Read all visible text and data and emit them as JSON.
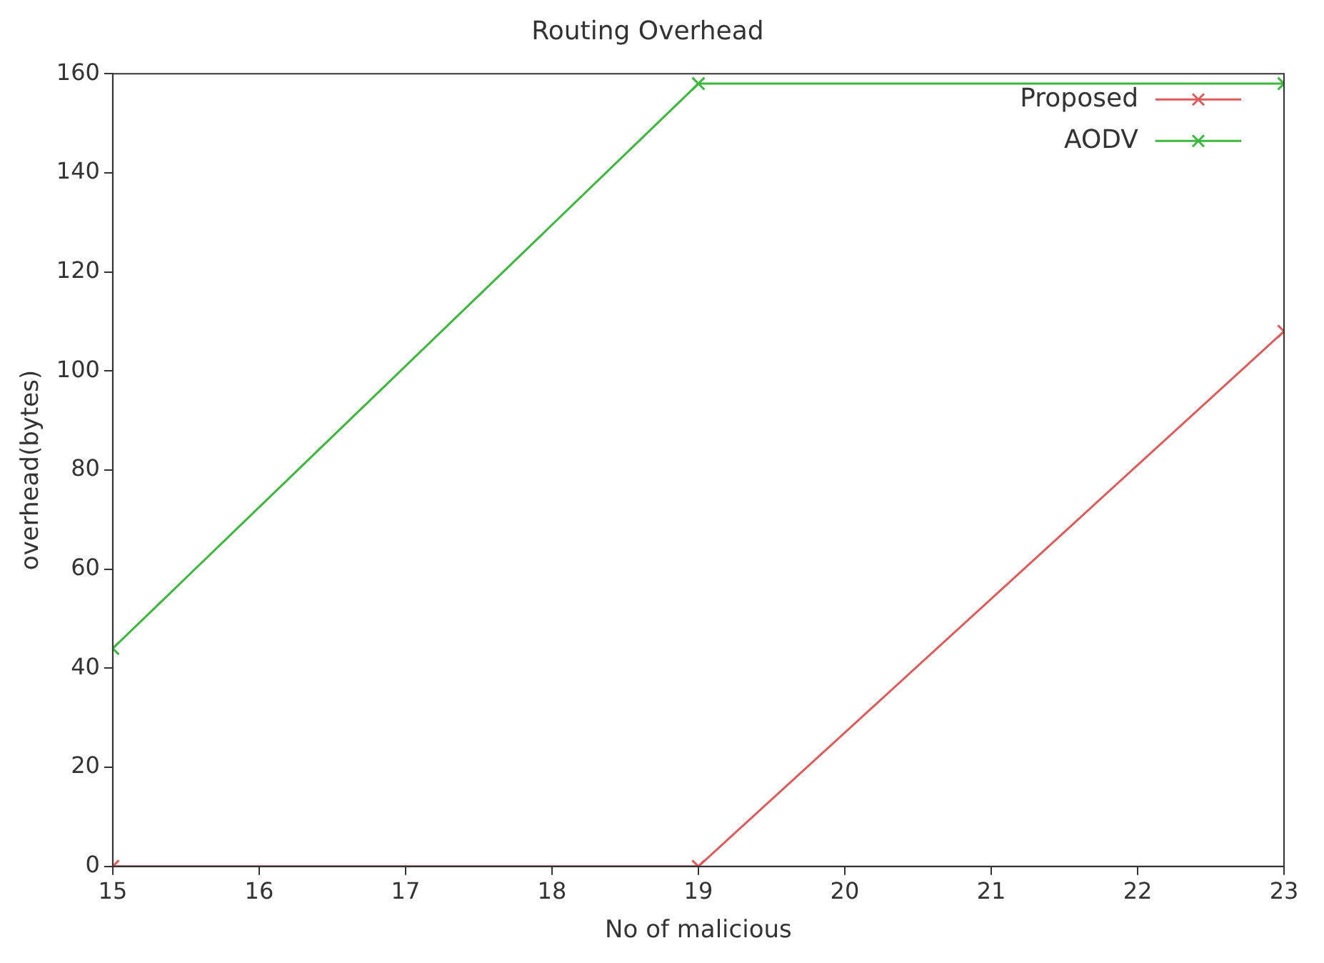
{
  "chart_data": {
    "type": "line",
    "title": "Routing Overhead",
    "xlabel": "No of malicious",
    "ylabel": "overhead(bytes)",
    "x": [
      15,
      19,
      23
    ],
    "series": [
      {
        "name": "Proposed",
        "color": "#e05a5a",
        "values": [
          0,
          0,
          108
        ]
      },
      {
        "name": "AODV",
        "color": "#3cb83c",
        "values": [
          44,
          158,
          158
        ]
      }
    ],
    "xlim": [
      15,
      23
    ],
    "xticks": [
      15,
      16,
      17,
      18,
      19,
      20,
      21,
      22,
      23
    ],
    "ylim": [
      0,
      160
    ],
    "yticks": [
      0,
      20,
      40,
      60,
      80,
      100,
      120,
      140,
      160
    ],
    "grid": false,
    "legend": "top right",
    "marker": "cross",
    "line_style": "solid"
  }
}
